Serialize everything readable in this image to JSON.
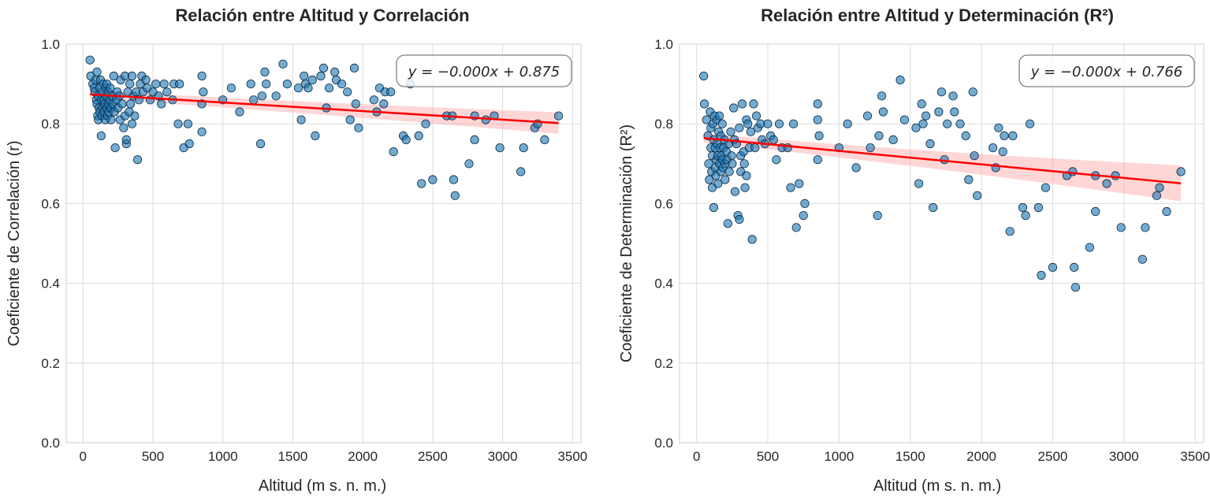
{
  "chart_data": [
    {
      "type": "scatter",
      "title": "Relación entre Altitud y Correlación",
      "xlabel": "Altitud (m s. n. m.)",
      "ylabel": "Coeficiente de Correlación (r)",
      "xlim": [
        -120,
        3560
      ],
      "ylim": [
        0.0,
        1.0
      ],
      "xticks": [
        0,
        500,
        1000,
        1500,
        2000,
        2500,
        3000,
        3500
      ],
      "xtick_labels": [
        "0",
        "500",
        "1000",
        "1500",
        "2000",
        "2500",
        "3000",
        "3500"
      ],
      "yticks": [
        0.0,
        0.2,
        0.4,
        0.6,
        0.8,
        1.0
      ],
      "ytick_labels": [
        "0.0",
        "0.2",
        "0.4",
        "0.6",
        "0.8",
        "1.0"
      ],
      "grid": true,
      "equation": "y = −0.000x + 0.875",
      "equation_position": "top-right",
      "point_color": "#1f77b4",
      "line_color": "#ff0000",
      "band_color": "#ff9999",
      "regression": {
        "intercept": 0.875,
        "slope": -2.15e-05,
        "x_range": [
          50,
          3400
        ],
        "ci_halfwidth": [
          0.01,
          0.027
        ]
      },
      "points": [
        [
          50,
          0.96
        ],
        [
          55,
          0.92
        ],
        [
          70,
          0.9
        ],
        [
          80,
          0.89
        ],
        [
          85,
          0.88
        ],
        [
          90,
          0.91
        ],
        [
          95,
          0.86
        ],
        [
          100,
          0.93
        ],
        [
          100,
          0.85
        ],
        [
          105,
          0.82
        ],
        [
          110,
          0.81
        ],
        [
          110,
          0.87
        ],
        [
          115,
          0.84
        ],
        [
          120,
          0.89
        ],
        [
          120,
          0.83
        ],
        [
          125,
          0.91
        ],
        [
          130,
          0.77
        ],
        [
          130,
          0.86
        ],
        [
          135,
          0.82
        ],
        [
          140,
          0.88
        ],
        [
          140,
          0.84
        ],
        [
          145,
          0.9
        ],
        [
          150,
          0.83
        ],
        [
          150,
          0.86
        ],
        [
          155,
          0.85
        ],
        [
          160,
          0.81
        ],
        [
          160,
          0.89
        ],
        [
          165,
          0.87
        ],
        [
          170,
          0.84
        ],
        [
          170,
          0.9
        ],
        [
          175,
          0.82
        ],
        [
          180,
          0.88
        ],
        [
          180,
          0.85
        ],
        [
          185,
          0.83
        ],
        [
          190,
          0.86
        ],
        [
          195,
          0.89
        ],
        [
          200,
          0.84
        ],
        [
          200,
          0.81
        ],
        [
          210,
          0.87
        ],
        [
          215,
          0.85
        ],
        [
          220,
          0.92
        ],
        [
          225,
          0.83
        ],
        [
          230,
          0.74
        ],
        [
          240,
          0.86
        ],
        [
          245,
          0.88
        ],
        [
          250,
          0.84
        ],
        [
          260,
          0.87
        ],
        [
          265,
          0.81
        ],
        [
          270,
          0.91
        ],
        [
          280,
          0.85
        ],
        [
          290,
          0.79
        ],
        [
          300,
          0.92
        ],
        [
          300,
          0.82
        ],
        [
          310,
          0.75
        ],
        [
          310,
          0.76
        ],
        [
          320,
          0.88
        ],
        [
          330,
          0.83
        ],
        [
          335,
          0.9
        ],
        [
          340,
          0.85
        ],
        [
          350,
          0.8
        ],
        [
          350,
          0.92
        ],
        [
          360,
          0.87
        ],
        [
          370,
          0.82
        ],
        [
          380,
          0.88
        ],
        [
          390,
          0.71
        ],
        [
          400,
          0.86
        ],
        [
          410,
          0.9
        ],
        [
          420,
          0.92
        ],
        [
          430,
          0.88
        ],
        [
          450,
          0.91
        ],
        [
          460,
          0.89
        ],
        [
          480,
          0.86
        ],
        [
          500,
          0.88
        ],
        [
          520,
          0.9
        ],
        [
          540,
          0.87
        ],
        [
          560,
          0.85
        ],
        [
          580,
          0.9
        ],
        [
          600,
          0.88
        ],
        [
          640,
          0.86
        ],
        [
          650,
          0.9
        ],
        [
          680,
          0.8
        ],
        [
          690,
          0.9
        ],
        [
          720,
          0.74
        ],
        [
          750,
          0.8
        ],
        [
          760,
          0.75
        ],
        [
          850,
          0.92
        ],
        [
          850,
          0.85
        ],
        [
          850,
          0.78
        ],
        [
          860,
          0.88
        ],
        [
          1000,
          0.86
        ],
        [
          1060,
          0.89
        ],
        [
          1120,
          0.83
        ],
        [
          1200,
          0.9
        ],
        [
          1220,
          0.86
        ],
        [
          1270,
          0.75
        ],
        [
          1280,
          0.87
        ],
        [
          1300,
          0.93
        ],
        [
          1310,
          0.9
        ],
        [
          1380,
          0.87
        ],
        [
          1430,
          0.95
        ],
        [
          1460,
          0.9
        ],
        [
          1540,
          0.89
        ],
        [
          1560,
          0.81
        ],
        [
          1580,
          0.92
        ],
        [
          1590,
          0.9
        ],
        [
          1610,
          0.89
        ],
        [
          1640,
          0.91
        ],
        [
          1660,
          0.77
        ],
        [
          1700,
          0.92
        ],
        [
          1720,
          0.94
        ],
        [
          1740,
          0.84
        ],
        [
          1760,
          0.89
        ],
        [
          1800,
          0.93
        ],
        [
          1810,
          0.91
        ],
        [
          1850,
          0.9
        ],
        [
          1890,
          0.88
        ],
        [
          1910,
          0.81
        ],
        [
          1940,
          0.94
        ],
        [
          1950,
          0.85
        ],
        [
          1970,
          0.79
        ],
        [
          2080,
          0.86
        ],
        [
          2100,
          0.83
        ],
        [
          2120,
          0.89
        ],
        [
          2150,
          0.85
        ],
        [
          2160,
          0.88
        ],
        [
          2200,
          0.88
        ],
        [
          2220,
          0.73
        ],
        [
          2290,
          0.77
        ],
        [
          2310,
          0.76
        ],
        [
          2340,
          0.9
        ],
        [
          2400,
          0.77
        ],
        [
          2420,
          0.65
        ],
        [
          2450,
          0.8
        ],
        [
          2500,
          0.66
        ],
        [
          2600,
          0.82
        ],
        [
          2640,
          0.82
        ],
        [
          2650,
          0.66
        ],
        [
          2660,
          0.62
        ],
        [
          2760,
          0.7
        ],
        [
          2800,
          0.76
        ],
        [
          2800,
          0.82
        ],
        [
          2880,
          0.81
        ],
        [
          2940,
          0.82
        ],
        [
          2980,
          0.74
        ],
        [
          3130,
          0.68
        ],
        [
          3150,
          0.74
        ],
        [
          3230,
          0.79
        ],
        [
          3250,
          0.8
        ],
        [
          3300,
          0.76
        ],
        [
          3400,
          0.82
        ]
      ]
    },
    {
      "type": "scatter",
      "title": "Relación entre Altitud y Determinación (R²)",
      "xlabel": "Altitud (m s. n. m.)",
      "ylabel": "Coeficiente de Determinación (R²)",
      "xlim": [
        -120,
        3560
      ],
      "ylim": [
        0.0,
        1.0
      ],
      "xticks": [
        0,
        500,
        1000,
        1500,
        2000,
        2500,
        3000,
        3500
      ],
      "xtick_labels": [
        "0",
        "500",
        "1000",
        "1500",
        "2000",
        "2500",
        "3000",
        "3500"
      ],
      "yticks": [
        0.0,
        0.2,
        0.4,
        0.6,
        0.8,
        1.0
      ],
      "ytick_labels": [
        "0.0",
        "0.2",
        "0.4",
        "0.6",
        "0.8",
        "1.0"
      ],
      "grid": true,
      "equation": "y = −0.000x + 0.766",
      "equation_position": "top-right",
      "point_color": "#1f77b4",
      "line_color": "#ff0000",
      "band_color": "#ff9999",
      "regression": {
        "intercept": 0.766,
        "slope": -3.39e-05,
        "x_range": [
          50,
          3400
        ],
        "ci_halfwidth": [
          0.012,
          0.045
        ]
      },
      "points": [
        [
          50,
          0.92
        ],
        [
          55,
          0.85
        ],
        [
          70,
          0.81
        ],
        [
          80,
          0.77
        ],
        [
          85,
          0.7
        ],
        [
          90,
          0.66
        ],
        [
          95,
          0.83
        ],
        [
          100,
          0.74
        ],
        [
          100,
          0.79
        ],
        [
          105,
          0.68
        ],
        [
          110,
          0.72
        ],
        [
          110,
          0.64
        ],
        [
          115,
          0.8
        ],
        [
          120,
          0.59
        ],
        [
          120,
          0.76
        ],
        [
          125,
          0.82
        ],
        [
          130,
          0.69
        ],
        [
          130,
          0.74
        ],
        [
          135,
          0.67
        ],
        [
          140,
          0.81
        ],
        [
          140,
          0.71
        ],
        [
          145,
          0.75
        ],
        [
          150,
          0.65
        ],
        [
          150,
          0.72
        ],
        [
          155,
          0.78
        ],
        [
          160,
          0.7
        ],
        [
          160,
          0.82
        ],
        [
          165,
          0.74
        ],
        [
          170,
          0.68
        ],
        [
          170,
          0.77
        ],
        [
          175,
          0.72
        ],
        [
          180,
          0.8
        ],
        [
          180,
          0.71
        ],
        [
          185,
          0.69
        ],
        [
          190,
          0.74
        ],
        [
          195,
          0.76
        ],
        [
          200,
          0.7
        ],
        [
          200,
          0.66
        ],
        [
          210,
          0.73
        ],
        [
          215,
          0.71
        ],
        [
          220,
          0.55
        ],
        [
          225,
          0.75
        ],
        [
          230,
          0.68
        ],
        [
          240,
          0.78
        ],
        [
          245,
          0.72
        ],
        [
          250,
          0.7
        ],
        [
          260,
          0.84
        ],
        [
          265,
          0.76
        ],
        [
          270,
          0.63
        ],
        [
          280,
          0.75
        ],
        [
          290,
          0.57
        ],
        [
          300,
          0.56
        ],
        [
          300,
          0.79
        ],
        [
          310,
          0.72
        ],
        [
          310,
          0.68
        ],
        [
          320,
          0.85
        ],
        [
          330,
          0.73
        ],
        [
          335,
          0.7
        ],
        [
          340,
          0.64
        ],
        [
          350,
          0.81
        ],
        [
          350,
          0.67
        ],
        [
          360,
          0.8
        ],
        [
          370,
          0.74
        ],
        [
          380,
          0.78
        ],
        [
          390,
          0.51
        ],
        [
          400,
          0.85
        ],
        [
          410,
          0.74
        ],
        [
          420,
          0.82
        ],
        [
          430,
          0.79
        ],
        [
          450,
          0.8
        ],
        [
          460,
          0.76
        ],
        [
          480,
          0.75
        ],
        [
          500,
          0.8
        ],
        [
          520,
          0.77
        ],
        [
          540,
          0.76
        ],
        [
          560,
          0.71
        ],
        [
          580,
          0.8
        ],
        [
          600,
          0.74
        ],
        [
          640,
          0.74
        ],
        [
          660,
          0.64
        ],
        [
          680,
          0.8
        ],
        [
          700,
          0.54
        ],
        [
          720,
          0.65
        ],
        [
          750,
          0.57
        ],
        [
          760,
          0.6
        ],
        [
          850,
          0.85
        ],
        [
          850,
          0.81
        ],
        [
          850,
          0.71
        ],
        [
          860,
          0.77
        ],
        [
          1000,
          0.74
        ],
        [
          1060,
          0.8
        ],
        [
          1120,
          0.69
        ],
        [
          1200,
          0.82
        ],
        [
          1220,
          0.74
        ],
        [
          1270,
          0.57
        ],
        [
          1280,
          0.77
        ],
        [
          1300,
          0.87
        ],
        [
          1310,
          0.83
        ],
        [
          1380,
          0.76
        ],
        [
          1430,
          0.91
        ],
        [
          1460,
          0.81
        ],
        [
          1540,
          0.79
        ],
        [
          1560,
          0.65
        ],
        [
          1580,
          0.85
        ],
        [
          1590,
          0.8
        ],
        [
          1610,
          0.82
        ],
        [
          1640,
          0.75
        ],
        [
          1660,
          0.59
        ],
        [
          1700,
          0.83
        ],
        [
          1720,
          0.88
        ],
        [
          1740,
          0.71
        ],
        [
          1760,
          0.8
        ],
        [
          1800,
          0.87
        ],
        [
          1810,
          0.83
        ],
        [
          1850,
          0.8
        ],
        [
          1890,
          0.77
        ],
        [
          1910,
          0.66
        ],
        [
          1940,
          0.88
        ],
        [
          1950,
          0.72
        ],
        [
          1970,
          0.62
        ],
        [
          2080,
          0.74
        ],
        [
          2100,
          0.69
        ],
        [
          2120,
          0.79
        ],
        [
          2150,
          0.73
        ],
        [
          2160,
          0.77
        ],
        [
          2200,
          0.53
        ],
        [
          2220,
          0.77
        ],
        [
          2290,
          0.59
        ],
        [
          2310,
          0.57
        ],
        [
          2340,
          0.8
        ],
        [
          2400,
          0.59
        ],
        [
          2420,
          0.42
        ],
        [
          2450,
          0.64
        ],
        [
          2500,
          0.44
        ],
        [
          2600,
          0.67
        ],
        [
          2640,
          0.68
        ],
        [
          2650,
          0.44
        ],
        [
          2660,
          0.39
        ],
        [
          2760,
          0.49
        ],
        [
          2800,
          0.58
        ],
        [
          2800,
          0.67
        ],
        [
          2880,
          0.65
        ],
        [
          2940,
          0.67
        ],
        [
          2980,
          0.54
        ],
        [
          3130,
          0.46
        ],
        [
          3150,
          0.54
        ],
        [
          3230,
          0.62
        ],
        [
          3250,
          0.64
        ],
        [
          3300,
          0.58
        ],
        [
          3400,
          0.68
        ]
      ]
    }
  ]
}
